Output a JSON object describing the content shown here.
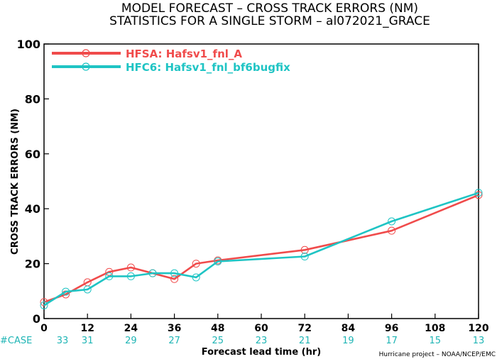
{
  "chart_data": {
    "type": "line",
    "title": "MODEL FORECAST – CROSS TRACK ERRORS (NM)",
    "subtitle": "STATISTICS FOR A SINGLE STORM – al072021_GRACE",
    "xlabel": "Forecast lead time (hr)",
    "ylabel": "CROSS TRACK ERRORS (NM)",
    "xlim": [
      0,
      120
    ],
    "ylim": [
      0,
      100
    ],
    "xticks": [
      0,
      12,
      24,
      36,
      48,
      60,
      72,
      84,
      96,
      108,
      120
    ],
    "yticks": [
      0,
      20,
      40,
      60,
      80,
      100
    ],
    "grid": false,
    "legend_position": "top-left",
    "case_label": "#CASE",
    "case_counts": [
      33,
      31,
      29,
      27,
      25,
      23,
      21,
      19,
      17,
      15,
      13
    ],
    "credit": "Hurricane project – NOAA/NCEP/EMC",
    "series": [
      {
        "name": "HFSA: Hafsv1_fnl_A",
        "color": "#f04b4b",
        "x": [
          0,
          6,
          12,
          18,
          24,
          30,
          36,
          42,
          48,
          72,
          96,
          120
        ],
        "values": [
          6.0,
          8.8,
          13.2,
          17.0,
          18.6,
          16.5,
          14.4,
          20.0,
          21.2,
          25.0,
          32.0,
          45.0
        ]
      },
      {
        "name": "HFC6: Hafsv1_fnl_bf6bugfix",
        "color": "#1fc4c4",
        "x": [
          0,
          6,
          12,
          18,
          24,
          30,
          36,
          42,
          48,
          72,
          96,
          120
        ],
        "values": [
          4.8,
          9.8,
          10.6,
          15.4,
          15.4,
          16.5,
          16.5,
          15.0,
          20.8,
          22.6,
          35.4,
          45.8
        ]
      }
    ]
  }
}
